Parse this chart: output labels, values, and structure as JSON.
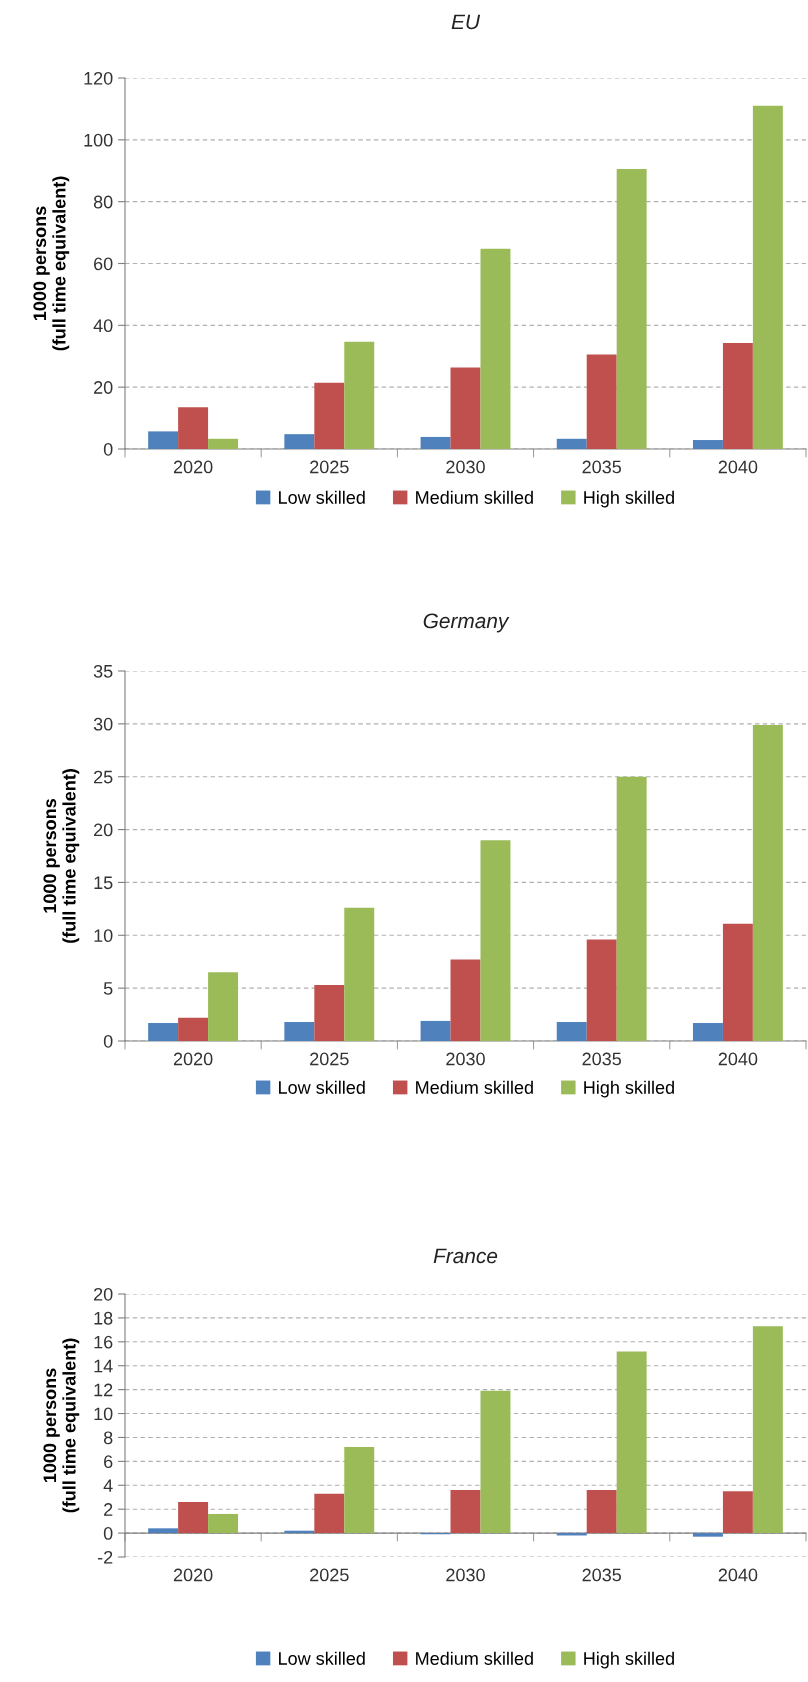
{
  "chart_data": [
    {
      "type": "bar",
      "title": "EU",
      "ylabel": "1000 persons\n(full time equivalent)",
      "categories": [
        "2020",
        "2025",
        "2030",
        "2035",
        "2040"
      ],
      "series": [
        {
          "name": "Low skilled",
          "color": "#4f81bd",
          "values": [
            5.7,
            4.8,
            3.9,
            3.3,
            2.9
          ]
        },
        {
          "name": "Medium skilled",
          "color": "#c0504d",
          "values": [
            13.5,
            21.4,
            26.4,
            30.6,
            34.3
          ]
        },
        {
          "name": "High skilled",
          "color": "#9bbb59",
          "values": [
            3.3,
            34.7,
            64.8,
            90.6,
            111
          ]
        }
      ],
      "ylim": [
        0,
        120
      ],
      "yticks": [
        0,
        20,
        40,
        60,
        80,
        100,
        120
      ],
      "grid": "y",
      "legend": "bottom"
    },
    {
      "type": "bar",
      "title": "Germany",
      "ylabel": "1000 persons\n(full time equivalent)",
      "categories": [
        "2020",
        "2025",
        "2030",
        "2035",
        "2040"
      ],
      "series": [
        {
          "name": "Low skilled",
          "color": "#4f81bd",
          "values": [
            1.7,
            1.8,
            1.9,
            1.8,
            1.7
          ]
        },
        {
          "name": "Medium skilled",
          "color": "#c0504d",
          "values": [
            2.2,
            5.3,
            7.7,
            9.6,
            11.1
          ]
        },
        {
          "name": "High skilled",
          "color": "#9bbb59",
          "values": [
            6.5,
            12.6,
            19.0,
            25.0,
            29.9
          ]
        }
      ],
      "ylim": [
        0,
        35
      ],
      "yticks": [
        0,
        5,
        10,
        15,
        20,
        25,
        30,
        35
      ],
      "grid": "y",
      "legend": "bottom"
    },
    {
      "type": "bar",
      "title": "France",
      "ylabel": "1000 persons\n(full time equivalent)",
      "categories": [
        "2020",
        "2025",
        "2030",
        "2035",
        "2040"
      ],
      "series": [
        {
          "name": "Low skilled",
          "color": "#4f81bd",
          "values": [
            0.4,
            0.2,
            -0.1,
            -0.2,
            -0.3
          ]
        },
        {
          "name": "Medium skilled",
          "color": "#c0504d",
          "values": [
            2.6,
            3.3,
            3.6,
            3.6,
            3.5
          ]
        },
        {
          "name": "High skilled",
          "color": "#9bbb59",
          "values": [
            1.6,
            7.2,
            11.9,
            15.2,
            17.3
          ]
        }
      ],
      "ylim": [
        -2,
        20
      ],
      "yticks": [
        -2,
        0,
        2,
        4,
        6,
        8,
        10,
        12,
        14,
        16,
        18,
        20
      ],
      "grid": "y",
      "legend": "bottom"
    }
  ]
}
